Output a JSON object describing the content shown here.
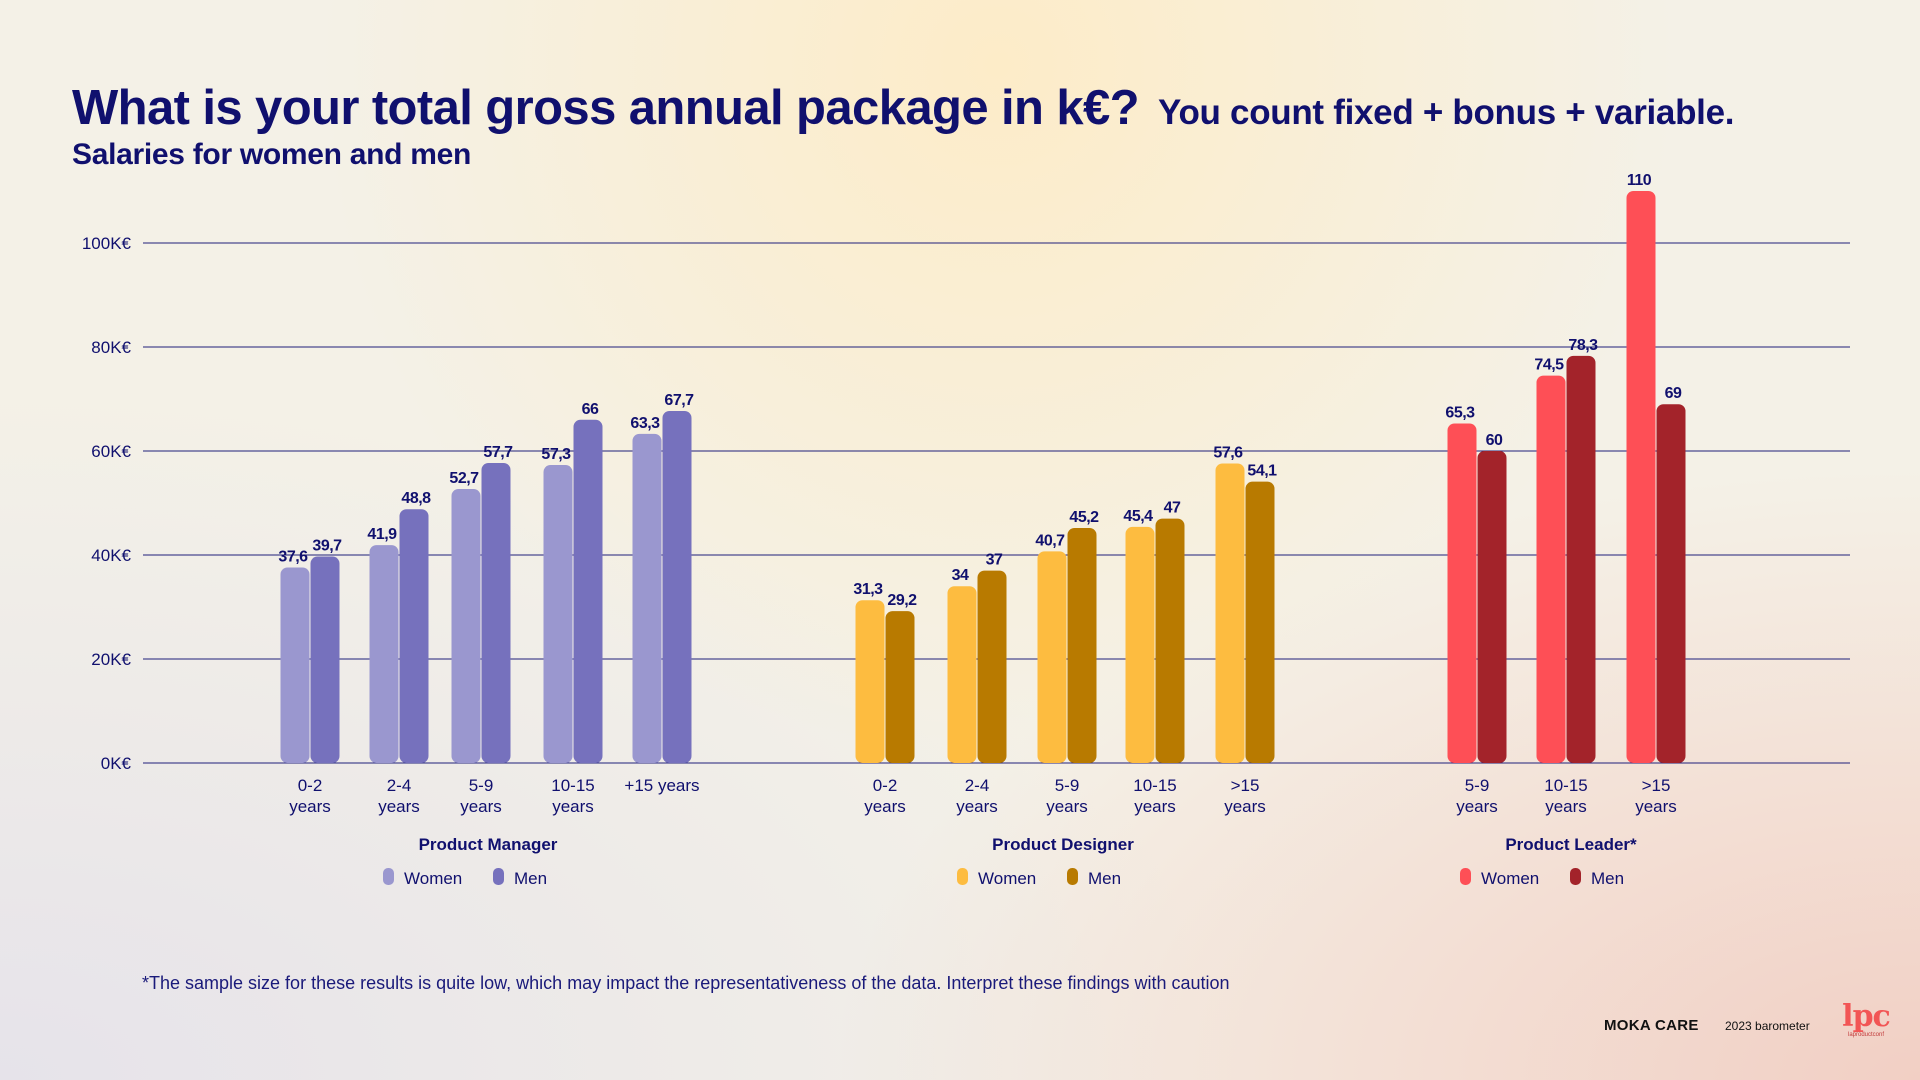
{
  "title": {
    "main": "What is your total gross annual package in k€?",
    "sub": "You count fixed + bonus + variable.",
    "subtitle": "Salaries for women and men"
  },
  "colors": {
    "axis": "#1f1f7a",
    "text": "#10106e",
    "pm_women": "#9a97cf",
    "pm_men": "#7671bd",
    "pd_women": "#fdbc40",
    "pd_men": "#b87a00",
    "pl_women": "#fe4f56",
    "pl_men": "#a3232a"
  },
  "chart_data": {
    "type": "bar",
    "ylim": [
      0,
      110
    ],
    "yticks": [
      0,
      20,
      40,
      60,
      80,
      100
    ],
    "ytick_labels": [
      "0K€",
      "20K€",
      "40K€",
      "60K€",
      "80K€",
      "100K€"
    ],
    "grid": true,
    "groups": [
      {
        "name": "Product Manager",
        "legend": [
          "Women",
          "Men"
        ],
        "colors": [
          "pm_women",
          "pm_men"
        ],
        "categories": [
          [
            "0-2",
            "years"
          ],
          [
            "2-4",
            "years"
          ],
          [
            "5-9",
            "years"
          ],
          [
            "10-15",
            "years"
          ],
          [
            "+15 years"
          ]
        ],
        "series": [
          {
            "name": "Women",
            "values": [
              37.6,
              41.9,
              52.7,
              57.3,
              63.3
            ],
            "labels": [
              "37,6",
              "41,9",
              "52,7",
              "57,3",
              "63,3"
            ]
          },
          {
            "name": "Men",
            "values": [
              39.7,
              48.8,
              57.7,
              66,
              67.7
            ],
            "labels": [
              "39,7",
              "48,8",
              "57,7",
              "66",
              "67,7"
            ]
          }
        ]
      },
      {
        "name": "Product Designer",
        "legend": [
          "Women",
          "Men"
        ],
        "colors": [
          "pd_women",
          "pd_men"
        ],
        "categories": [
          [
            "0-2",
            "years"
          ],
          [
            "2-4",
            "years"
          ],
          [
            "5-9",
            "years"
          ],
          [
            "10-15",
            "years"
          ],
          [
            ">15",
            "years"
          ]
        ],
        "series": [
          {
            "name": "Women",
            "values": [
              31.3,
              34,
              40.7,
              45.4,
              57.6
            ],
            "labels": [
              "31,3",
              "34",
              "40,7",
              "45,4",
              "57,6"
            ]
          },
          {
            "name": "Men",
            "values": [
              29.2,
              37,
              45.2,
              47,
              54.1
            ],
            "labels": [
              "29,2",
              "37",
              "45,2",
              "47",
              "54,1"
            ]
          }
        ]
      },
      {
        "name": "Product Leader*",
        "legend": [
          "Women",
          "Men"
        ],
        "colors": [
          "pl_women",
          "pl_men"
        ],
        "categories": [
          [
            "5-9",
            "years"
          ],
          [
            "10-15",
            "years"
          ],
          [
            ">15",
            "years"
          ]
        ],
        "series": [
          {
            "name": "Women",
            "values": [
              65.3,
              74.5,
              110
            ],
            "labels": [
              "65,3",
              "74,5",
              "110"
            ]
          },
          {
            "name": "Men",
            "values": [
              60,
              78.3,
              69
            ],
            "labels": [
              "60",
              "78,3",
              "69"
            ]
          }
        ]
      }
    ]
  },
  "footnote": "*The sample size for these results is quite low, which may impact the representativeness of the data. Interpret these findings with caution",
  "footer": {
    "brand": "MOKA CARE",
    "barometer": "2023 barometer",
    "logo_text": "lpc",
    "logo_sub": "laproductconf"
  }
}
